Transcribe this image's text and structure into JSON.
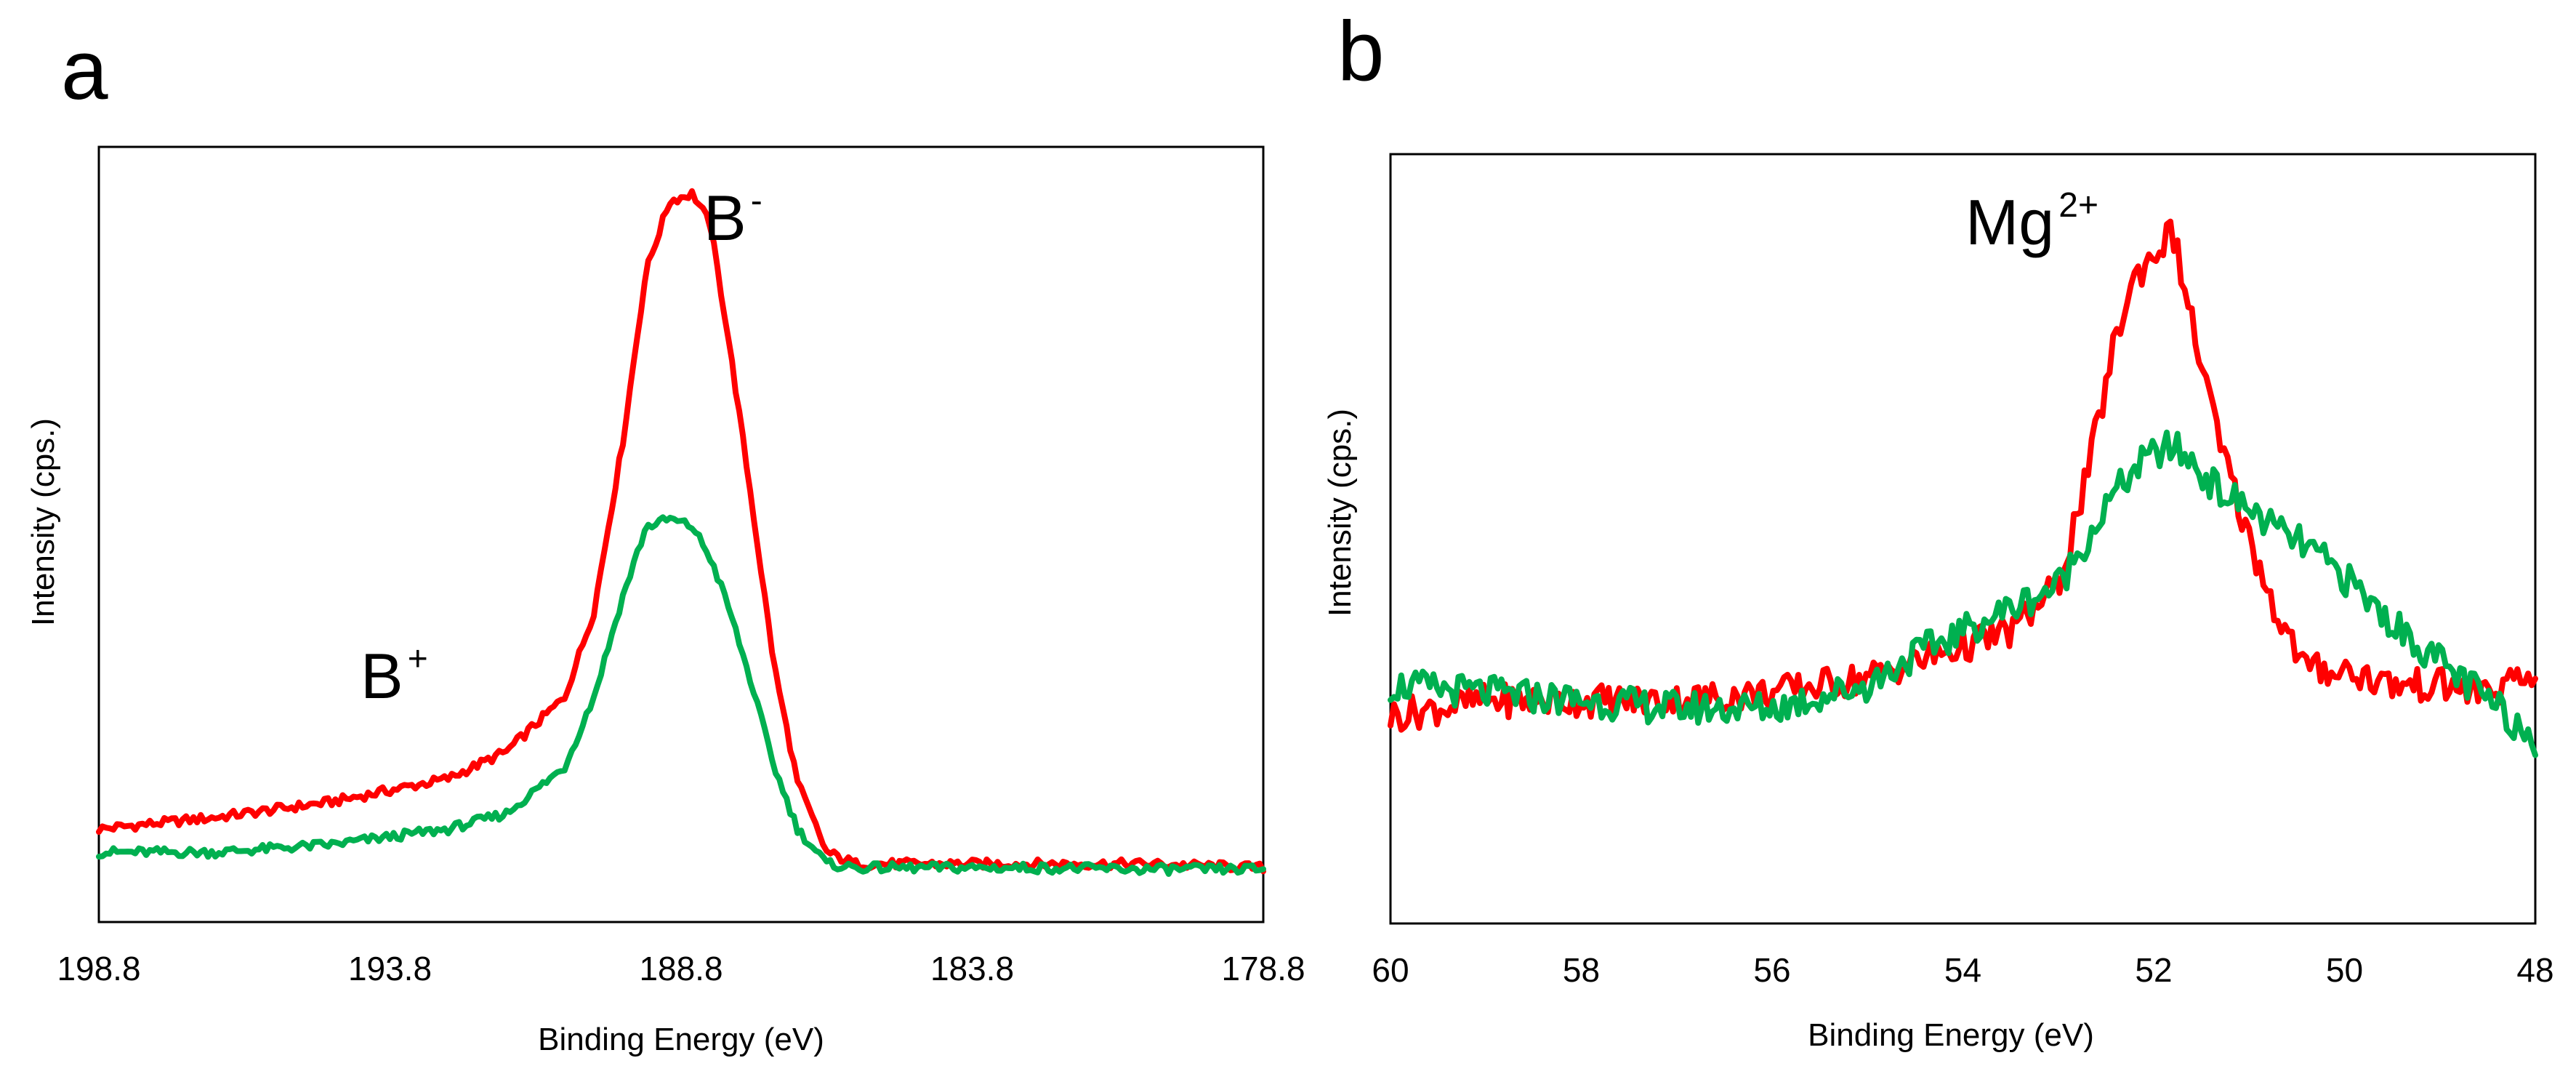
{
  "chart_data": [
    {
      "panel_label": "a",
      "type": "line",
      "title": "",
      "xlabel": "Binding Energy (eV)",
      "ylabel": "Intensity (cps.)",
      "xlim": [
        198.8,
        178.8
      ],
      "ylim": [
        0,
        1.0
      ],
      "xticks": [
        "198.8",
        "193.8",
        "188.8",
        "183.8",
        "178.8"
      ],
      "xtick_values": [
        198.8,
        193.8,
        188.8,
        183.8,
        178.8
      ],
      "grid": false,
      "annotations": [
        {
          "base": "B",
          "sup": "-",
          "x": 187.3,
          "y": 0.9
        },
        {
          "base": "B",
          "sup": "+",
          "x": 194.5,
          "y": 0.3
        }
      ],
      "series": [
        {
          "name": "red",
          "color": "#ff0000",
          "x": [
            198.8,
            196.8,
            194.8,
            193.8,
            192.8,
            191.8,
            190.8,
            190.3,
            189.8,
            189.4,
            189.0,
            188.6,
            188.3,
            188.0,
            187.6,
            187.2,
            186.8,
            186.3,
            185.8,
            184.8,
            183.8,
            182.8,
            180.8,
            178.8
          ],
          "y": [
            0.12,
            0.135,
            0.155,
            0.17,
            0.185,
            0.22,
            0.29,
            0.4,
            0.62,
            0.84,
            0.93,
            0.94,
            0.9,
            0.76,
            0.55,
            0.33,
            0.18,
            0.09,
            0.075,
            0.075,
            0.075,
            0.075,
            0.075,
            0.07
          ]
        },
        {
          "name": "green",
          "color": "#00b050",
          "x": [
            198.8,
            196.8,
            194.8,
            193.8,
            192.8,
            191.8,
            190.8,
            190.3,
            189.8,
            189.4,
            189.0,
            188.6,
            188.3,
            188.0,
            187.6,
            187.2,
            186.8,
            186.3,
            185.8,
            184.8,
            183.8,
            182.8,
            180.8,
            178.8
          ],
          "y": [
            0.09,
            0.09,
            0.1,
            0.11,
            0.12,
            0.14,
            0.2,
            0.29,
            0.42,
            0.51,
            0.52,
            0.51,
            0.47,
            0.41,
            0.31,
            0.2,
            0.12,
            0.075,
            0.07,
            0.07,
            0.07,
            0.07,
            0.068,
            0.068
          ]
        }
      ]
    },
    {
      "panel_label": "b",
      "type": "line",
      "title": "",
      "xlabel": "Binding Energy (eV)",
      "ylabel": "Intensity (cps.)",
      "xlim": [
        60,
        48
      ],
      "ylim": [
        0,
        1.0
      ],
      "xticks": [
        "60",
        "58",
        "56",
        "54",
        "52",
        "50",
        "48"
      ],
      "xtick_values": [
        60,
        58,
        56,
        54,
        52,
        50,
        48
      ],
      "grid": false,
      "annotations": [
        {
          "base": "Mg",
          "sup": "2+",
          "x": 53.1,
          "y": 0.9
        }
      ],
      "series": [
        {
          "name": "red",
          "color": "#ff0000",
          "x": [
            60,
            59,
            58,
            57,
            56,
            55,
            54.5,
            54,
            53.5,
            53,
            52.7,
            52.4,
            52.2,
            52.0,
            51.8,
            51.6,
            51.3,
            51.0,
            50.7,
            50.4,
            50.0,
            49.5,
            49.0,
            48.5,
            48
          ],
          "y": [
            0.27,
            0.29,
            0.29,
            0.29,
            0.3,
            0.32,
            0.34,
            0.36,
            0.38,
            0.44,
            0.58,
            0.76,
            0.84,
            0.87,
            0.9,
            0.78,
            0.62,
            0.5,
            0.4,
            0.33,
            0.33,
            0.31,
            0.31,
            0.3,
            0.32
          ]
        },
        {
          "name": "green",
          "color": "#00b050",
          "x": [
            60,
            59,
            58,
            57,
            56,
            55,
            54.5,
            54,
            53.5,
            53,
            52.7,
            52.4,
            52.2,
            52.0,
            51.8,
            51.6,
            51.3,
            51.0,
            50.7,
            50.4,
            50.0,
            49.5,
            49.0,
            48.5,
            48
          ],
          "y": [
            0.31,
            0.3,
            0.29,
            0.28,
            0.28,
            0.31,
            0.35,
            0.38,
            0.41,
            0.44,
            0.5,
            0.56,
            0.59,
            0.61,
            0.62,
            0.6,
            0.56,
            0.54,
            0.51,
            0.49,
            0.45,
            0.39,
            0.34,
            0.29,
            0.24
          ]
        }
      ]
    }
  ]
}
